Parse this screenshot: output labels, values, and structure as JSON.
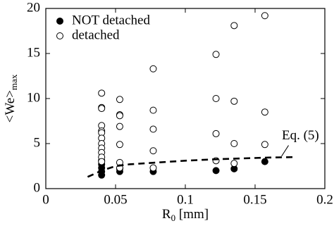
{
  "chart_data": {
    "type": "scatter",
    "xlabel": "R",
    "xlabel_sub": "0",
    "xlabel_unit": "[mm]",
    "ylabel": "<We>",
    "ylabel_sub": "max",
    "xlim": [
      0,
      0.2
    ],
    "xticks": [
      0,
      0.05,
      0.1,
      0.15,
      0.2
    ],
    "ylim": [
      0,
      20
    ],
    "yticks": [
      0,
      5,
      10,
      15,
      20
    ],
    "legend": "upper left",
    "series": [
      {
        "name": "NOT detached",
        "type": "scatter",
        "marker": "filled",
        "color": "#000000",
        "x": [
          0.04,
          0.04,
          0.04,
          0.04,
          0.04,
          0.053,
          0.053,
          0.077,
          0.122,
          0.135,
          0.157
        ],
        "values": [
          1.5,
          1.9,
          2.3,
          2.7,
          3.1,
          1.9,
          2.2,
          1.9,
          2.0,
          2.2,
          3.0
        ]
      },
      {
        "name": "detached",
        "type": "scatter",
        "marker": "open",
        "color": "#000000",
        "x": [
          0.04,
          0.04,
          0.04,
          0.04,
          0.04,
          0.04,
          0.04,
          0.04,
          0.04,
          0.04,
          0.04,
          0.04,
          0.053,
          0.053,
          0.053,
          0.053,
          0.053,
          0.053,
          0.053,
          0.077,
          0.077,
          0.077,
          0.077,
          0.077,
          0.122,
          0.122,
          0.122,
          0.122,
          0.135,
          0.135,
          0.135,
          0.135,
          0.157,
          0.157,
          0.157
        ],
        "values": [
          10.6,
          9.0,
          8.9,
          7.0,
          6.4,
          6.2,
          5.6,
          5.0,
          4.5,
          4.0,
          3.5,
          3.0,
          9.9,
          8.2,
          8.1,
          6.9,
          4.9,
          2.9,
          2.3,
          13.3,
          8.7,
          6.6,
          4.2,
          2.3,
          14.9,
          10.0,
          6.1,
          3.1,
          18.1,
          9.7,
          5.0,
          2.8,
          19.2,
          8.5,
          4.9
        ]
      },
      {
        "name": "Eq. (5)",
        "type": "line",
        "style": "dashed",
        "color": "#000000",
        "x": [
          0.03,
          0.04,
          0.05,
          0.06,
          0.08,
          0.1,
          0.12,
          0.14,
          0.16,
          0.178
        ],
        "values": [
          1.3,
          2.0,
          2.5,
          2.7,
          2.9,
          3.1,
          3.25,
          3.35,
          3.45,
          3.5
        ]
      }
    ]
  }
}
